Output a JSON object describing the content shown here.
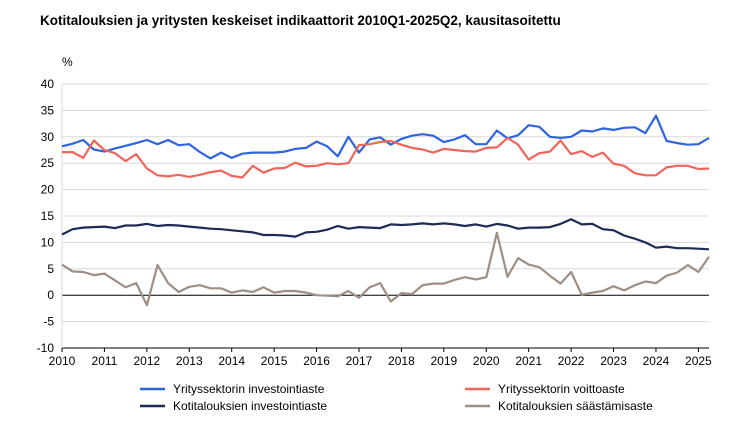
{
  "chart_data": {
    "type": "line",
    "title": "Kotitalouksien ja yritysten keskeiset indikaattorit 2010Q1-2025Q2, kausitasoitettu",
    "ylabel": "%",
    "ylim": [
      -10,
      40
    ],
    "yticks": [
      -10,
      -5,
      0,
      5,
      10,
      15,
      20,
      25,
      30,
      35,
      40
    ],
    "xlim": [
      2010,
      2025.25
    ],
    "xticks": [
      "2010",
      "2011",
      "2012",
      "2013",
      "2014",
      "2015",
      "2016",
      "2017",
      "2018",
      "2019",
      "2020",
      "2021",
      "2022",
      "2023",
      "2024",
      "2025"
    ],
    "grid": true,
    "legend": "bottom",
    "series": [
      {
        "name": "Yrityssektorin investointiaste",
        "color": "#2e64e0",
        "values": [
          28.2,
          28.7,
          29.4,
          27.6,
          27.2,
          27.8,
          28.3,
          28.8,
          29.4,
          28.6,
          29.4,
          28.4,
          28.6,
          27.1,
          25.9,
          27.0,
          26.0,
          26.8,
          27.0,
          27.0,
          27.0,
          27.2,
          27.7,
          27.9,
          29.1,
          28.2,
          26.3,
          30.0,
          27.0,
          29.5,
          29.9,
          28.5,
          29.6,
          30.2,
          30.5,
          30.2,
          29.0,
          29.5,
          30.3,
          28.6,
          28.6,
          31.2,
          29.7,
          30.3,
          32.2,
          31.9,
          30.0,
          29.8,
          30.0,
          31.2,
          31.0,
          31.6,
          31.3,
          31.7,
          31.8,
          30.7,
          34.0,
          29.2,
          28.8,
          28.5,
          28.6,
          29.8
        ]
      },
      {
        "name": "Yrityssektorin voittoaste",
        "color": "#f0645a",
        "values": [
          27.1,
          27.1,
          26.0,
          29.3,
          27.5,
          26.9,
          25.4,
          26.7,
          24.0,
          22.7,
          22.5,
          22.8,
          22.4,
          22.8,
          23.3,
          23.6,
          22.6,
          22.3,
          24.5,
          23.2,
          24.0,
          24.1,
          25.1,
          24.4,
          24.5,
          25.0,
          24.8,
          25.0,
          28.4,
          28.6,
          29.0,
          29.2,
          28.5,
          27.9,
          27.6,
          27.0,
          27.7,
          27.5,
          27.3,
          27.2,
          27.9,
          28.0,
          29.8,
          28.5,
          25.7,
          26.9,
          27.2,
          29.3,
          26.7,
          27.3,
          26.2,
          27.0,
          24.9,
          24.5,
          23.1,
          22.7,
          22.7,
          24.2,
          24.5,
          24.5,
          23.9,
          24.0
        ]
      },
      {
        "name": "Kotitalouksien investointiaste",
        "color": "#1c2c55",
        "values": [
          11.5,
          12.5,
          12.8,
          12.9,
          13.0,
          12.7,
          13.2,
          13.2,
          13.5,
          13.1,
          13.3,
          13.2,
          13.0,
          12.8,
          12.6,
          12.5,
          12.3,
          12.1,
          11.9,
          11.4,
          11.4,
          11.3,
          11.1,
          11.9,
          12.0,
          12.4,
          13.1,
          12.6,
          12.9,
          12.8,
          12.7,
          13.4,
          13.3,
          13.4,
          13.6,
          13.4,
          13.6,
          13.4,
          13.1,
          13.4,
          13.0,
          13.5,
          13.2,
          12.6,
          12.8,
          12.8,
          12.9,
          13.5,
          14.4,
          13.4,
          13.5,
          12.5,
          12.3,
          11.3,
          10.7,
          10.0,
          9.0,
          9.2,
          8.9,
          8.9,
          8.8,
          8.7
        ]
      },
      {
        "name": "Kotitalouksien säästämisaste",
        "color": "#9e8e85",
        "values": [
          5.8,
          4.5,
          4.4,
          3.8,
          4.1,
          2.8,
          1.5,
          2.3,
          -1.9,
          5.7,
          2.3,
          0.6,
          1.6,
          1.9,
          1.3,
          1.3,
          0.5,
          0.9,
          0.6,
          1.5,
          0.5,
          0.8,
          0.8,
          0.5,
          0.0,
          -0.1,
          -0.2,
          0.8,
          -0.5,
          1.5,
          2.3,
          -1.2,
          0.4,
          0.2,
          1.9,
          2.2,
          2.2,
          2.9,
          3.4,
          3.0,
          3.4,
          11.8,
          3.5,
          7.0,
          5.8,
          5.3,
          3.7,
          2.2,
          4.4,
          0.1,
          0.5,
          0.8,
          1.7,
          0.9,
          1.9,
          2.6,
          2.3,
          3.7,
          4.3,
          5.7,
          4.4,
          7.3
        ]
      }
    ]
  }
}
